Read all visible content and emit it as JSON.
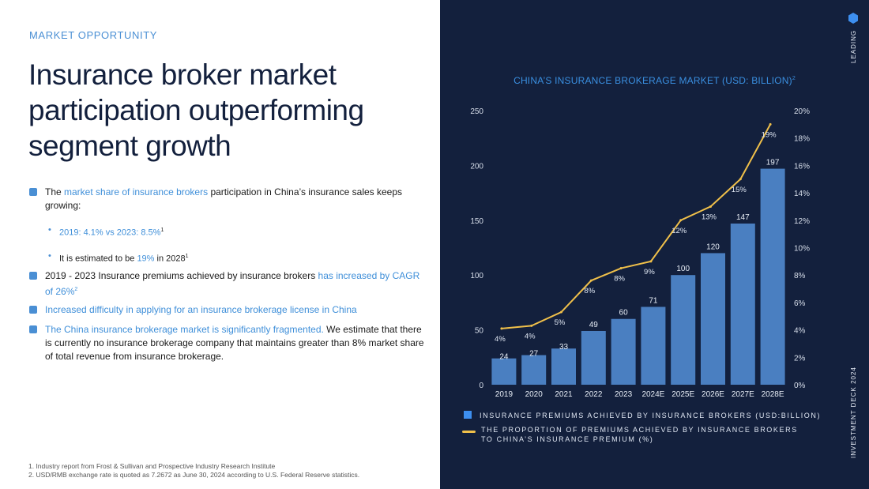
{
  "left": {
    "eyebrow": "MARKET OPPORTUNITY",
    "headline": "Insurance broker market participation outperforming segment growth",
    "bullet1": {
      "pre": "The ",
      "hl": "market share of insurance brokers",
      "post": " participation in China’s insurance sales keeps growing:"
    },
    "sub1": {
      "text": "2019: 4.1% vs 2023: 8.5%",
      "sup": "1"
    },
    "sub2": {
      "pre": "It is estimated to be ",
      "hl": "19%",
      "post": " in 2028",
      "sup": "1"
    },
    "bullet2": {
      "pre": "2019 - 2023 Insurance premiums achieved by insurance brokers ",
      "hl": "has increased by CAGR of 26%",
      "sup": "2"
    },
    "bullet3": {
      "hl": "Increased difficulty in applying for an insurance brokerage license in China"
    },
    "bullet4": {
      "hl": "The China insurance brokerage market  is significantly fragmented.",
      "post": " We estimate that there is currently no insurance brokerage company that maintains greater than 8% market share of total revenue from insurance brokerage."
    },
    "footnotes": [
      "1.   Industry report from Frost & Sullivan and Prospective Industry Research Institute",
      "2.   USD/RMB exchange rate is quoted as 7.2672 as June 30, 2024 according to U.S. Federal Reserve statistics."
    ]
  },
  "right": {
    "side_top": "LEADING",
    "side_bottom": "INVESTMENT DECK 2024"
  },
  "colors": {
    "navy": "#13203d",
    "bar": "#4a7fc1",
    "line": "#f0c04a",
    "accent": "#4a8fd4"
  },
  "chart_data": {
    "type": "bar",
    "title": "CHINA’S INSURANCE BROKERAGE MARKET (USD: BILLION)",
    "title_sup": "2",
    "categories": [
      "2019",
      "2020",
      "2021",
      "2022",
      "2023",
      "2024E",
      "2025E",
      "2026E",
      "2027E",
      "2028E"
    ],
    "series": [
      {
        "name": "INSURANCE PREMIUMS ACHIEVED BY INSURANCE BROKERS (USD:BILLION)",
        "type": "bar",
        "axis": "left",
        "values": [
          24,
          27,
          33,
          49,
          60,
          71,
          100,
          120,
          147,
          197
        ]
      },
      {
        "name": "THE PROPORTION OF PREMIUMS ACHIEVED BY INSURANCE BROKERS TO CHINA’S INSURANCE PREMIUM (%)",
        "type": "line",
        "axis": "right",
        "values": [
          4.1,
          4.3,
          5.3,
          7.6,
          8.5,
          9.0,
          12.0,
          13.0,
          15.0,
          19.0
        ],
        "labels": [
          "4%",
          "4%",
          "5%",
          "8%",
          "8%",
          "9%",
          "12%",
          "13%",
          "15%",
          "19%"
        ]
      }
    ],
    "ylim_left": [
      0,
      250
    ],
    "yticks_left": [
      "0",
      "50",
      "100",
      "150",
      "200",
      "250"
    ],
    "ylim_right": [
      0,
      20
    ],
    "yticks_right": [
      "0%",
      "2%",
      "4%",
      "6%",
      "8%",
      "10%",
      "12%",
      "14%",
      "16%",
      "18%",
      "20%"
    ],
    "legend": "bottom"
  }
}
